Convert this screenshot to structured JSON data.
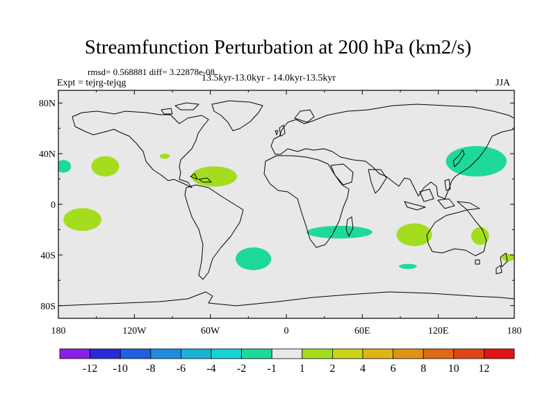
{
  "title": "Streamfunction Perturbation at 200 hPa (km2/s)",
  "stats": "rmsd= 0.568881  diff= 3.22878e-08",
  "expt": "Expt = tejrg-tejqg",
  "period": "13.5kyr-13.0kyr - 14.0kyr-13.5kyr",
  "season": "JJA",
  "lat_ticks": [
    "80N",
    "40N",
    "0",
    "40S",
    "80S"
  ],
  "lon_ticks": [
    "180",
    "120W",
    "60W",
    "0",
    "60E",
    "120E",
    "180"
  ],
  "colorbar": {
    "colors": [
      "#8a1ee8",
      "#2a2ad8",
      "#1f5fe0",
      "#1f8ce0",
      "#1ab2d8",
      "#16d3d3",
      "#1ed99b",
      "#e8e8e8",
      "#a3dd1e",
      "#c8d416",
      "#e0b414",
      "#e09414",
      "#e06a14",
      "#e04414",
      "#e01414"
    ],
    "labels": [
      "-12",
      "-10",
      "-8",
      "-6",
      "-4",
      "-2",
      "-1",
      "1",
      "2",
      "4",
      "6",
      "8",
      "10",
      "12"
    ]
  },
  "colors": {
    "neutral": "#e8e8e8",
    "negative": "#1ed99b",
    "positive": "#a3dd1e"
  },
  "anomalies": [
    {
      "sign": "positive",
      "lon": -143,
      "lat": 30,
      "rlon": 11,
      "rlat": 8
    },
    {
      "sign": "positive",
      "lon": -96,
      "lat": 38,
      "rlon": 4,
      "rlat": 2
    },
    {
      "sign": "positive",
      "lon": -57,
      "lat": 22,
      "rlon": 18,
      "rlat": 8
    },
    {
      "sign": "positive",
      "lon": -161,
      "lat": -12,
      "rlon": 15,
      "rlat": 9
    },
    {
      "sign": "positive",
      "lon": 101,
      "lat": -24,
      "rlon": 14,
      "rlat": 9
    },
    {
      "sign": "positive",
      "lon": 153,
      "lat": -25,
      "rlon": 7,
      "rlat": 7
    },
    {
      "sign": "positive",
      "lon": 175,
      "lat": -42,
      "rlon": 5,
      "rlat": 3
    },
    {
      "sign": "negative",
      "lon": -176,
      "lat": 30,
      "rlon": 6,
      "rlat": 5
    },
    {
      "sign": "negative",
      "lon": -26,
      "lat": -43,
      "rlon": 14,
      "rlat": 9
    },
    {
      "sign": "negative",
      "lon": 42,
      "lat": -22,
      "rlon": 26,
      "rlat": 5
    },
    {
      "sign": "negative",
      "lon": 150,
      "lat": 34,
      "rlon": 24,
      "rlat": 12
    },
    {
      "sign": "negative",
      "lon": 96,
      "lat": -49,
      "rlon": 7,
      "rlat": 2
    }
  ]
}
